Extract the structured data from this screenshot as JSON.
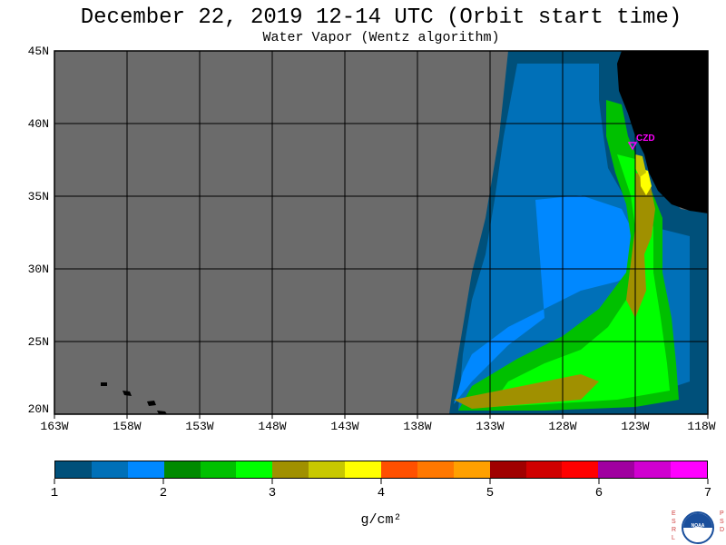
{
  "title": "December 22, 2019  12-14 UTC  (Orbit start time)",
  "subtitle": "Water Vapor (Wentz algorithm)",
  "lat_labels": [
    "45N",
    "40N",
    "35N",
    "30N",
    "25N",
    "20N"
  ],
  "lon_labels": [
    "163W",
    "158W",
    "153W",
    "148W",
    "143W",
    "138W",
    "133W",
    "128W",
    "123W",
    "118W"
  ],
  "station": {
    "name": "CZD"
  },
  "colorbar": {
    "ticks": [
      "1",
      "2",
      "3",
      "4",
      "5",
      "6",
      "7"
    ],
    "unit": "g/cm²",
    "colors": [
      "#00507a",
      "#0070b8",
      "#0088ff",
      "#008a00",
      "#00c000",
      "#00ff00",
      "#a09000",
      "#c8c800",
      "#ffff00",
      "#ff5000",
      "#ff7800",
      "#ffa000",
      "#a00000",
      "#d00000",
      "#ff0000",
      "#a000a0",
      "#d000d0",
      "#ff00ff"
    ]
  },
  "logo": {
    "left_text": "ESRL",
    "right_text": "PSD",
    "center_text": "NOAA"
  },
  "colors": {
    "no_data": "#6b6b6b",
    "land": "#000000",
    "grid": "#000000"
  }
}
